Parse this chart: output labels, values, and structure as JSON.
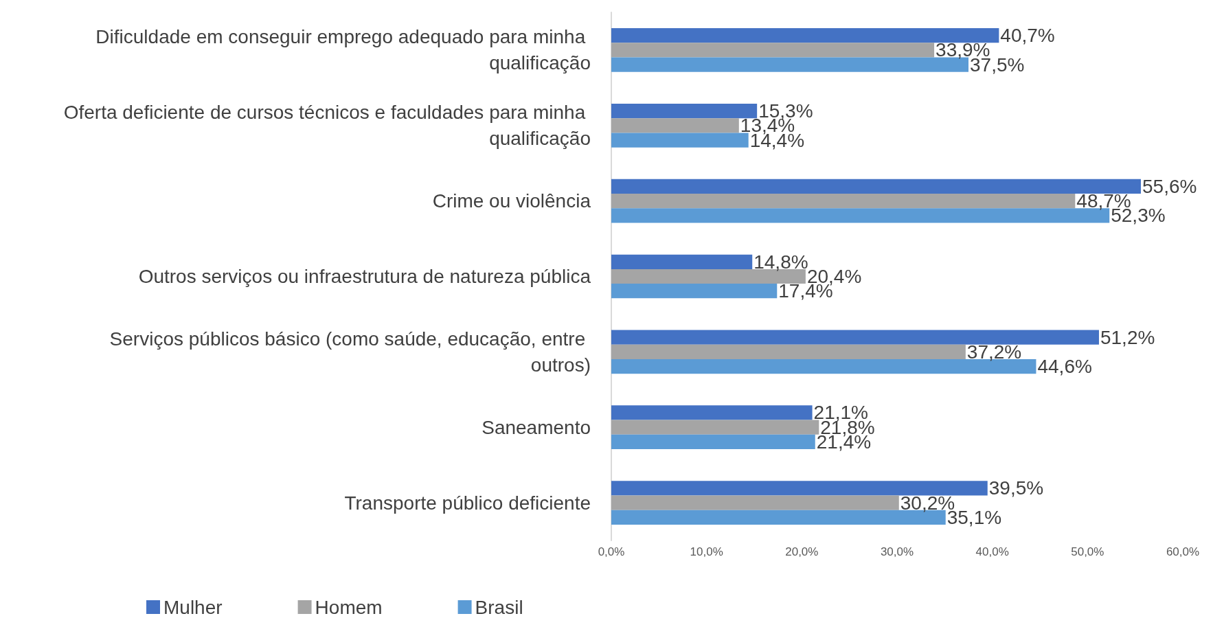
{
  "chart_data": {
    "type": "bar",
    "orientation": "horizontal",
    "categories": [
      "Dificuldade em conseguir emprego adequado para minha qualificação",
      "Oferta deficiente de cursos técnicos e faculdades para minha qualificação",
      "Crime ou violência",
      "Outros serviços ou infraestrutura de natureza pública",
      "Serviços públicos básico (como saúde, educação, entre outros)",
      "Saneamento",
      "Transporte público deficiente"
    ],
    "series": [
      {
        "name": "Mulher",
        "color": "#4472c4",
        "values": [
          40.7,
          15.3,
          55.6,
          14.8,
          51.2,
          21.1,
          39.5
        ],
        "value_labels": [
          "40,7%",
          "15,3%",
          "55,6%",
          "14,8%",
          "51,2%",
          "21,1%",
          "39,5%"
        ]
      },
      {
        "name": "Homem",
        "color": "#a5a5a5",
        "values": [
          33.9,
          13.4,
          48.7,
          20.4,
          37.2,
          21.8,
          30.2
        ],
        "value_labels": [
          "33,9%",
          "13,4%",
          "48,7%",
          "20,4%",
          "37,2%",
          "21,8%",
          "30,2%"
        ]
      },
      {
        "name": "Brasil",
        "color": "#5b9bd5",
        "values": [
          37.5,
          14.4,
          52.3,
          17.4,
          44.6,
          21.4,
          35.1
        ],
        "value_labels": [
          "37,5%",
          "14,4%",
          "52,3%",
          "17,4%",
          "44,6%",
          "21,4%",
          "35,1%"
        ]
      }
    ],
    "xlim": [
      0,
      60
    ],
    "xticks": [
      {
        "value": 0,
        "label": "0,0%"
      },
      {
        "value": 10,
        "label": "10,0%"
      },
      {
        "value": 20,
        "label": "20,0%"
      },
      {
        "value": 30,
        "label": "30,0%"
      },
      {
        "value": 40,
        "label": "40,0%"
      },
      {
        "value": 50,
        "label": "50,0%"
      },
      {
        "value": 60,
        "label": "60,0%"
      }
    ],
    "grid": false,
    "legend": "bottom left"
  }
}
